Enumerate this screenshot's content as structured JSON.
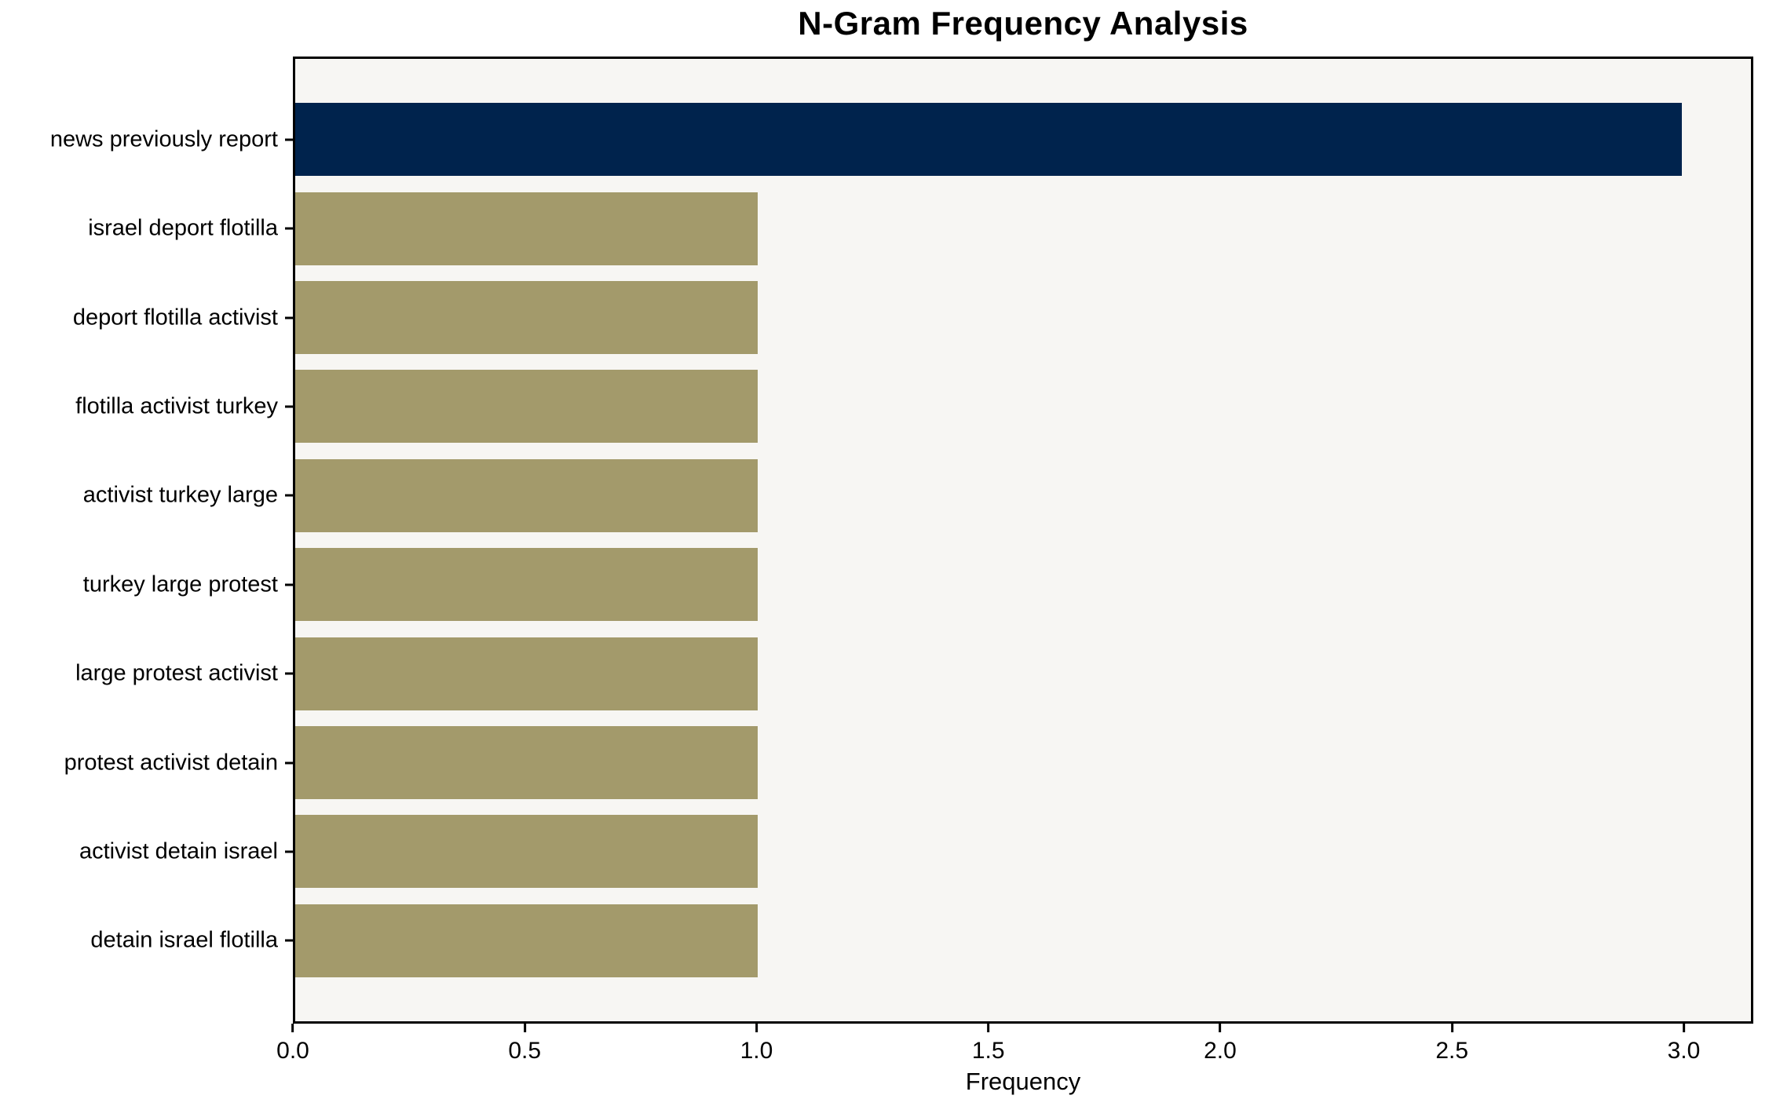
{
  "chart_data": {
    "type": "bar",
    "orientation": "horizontal",
    "title": "N-Gram Frequency Analysis",
    "xlabel": "Frequency",
    "ylabel": "",
    "categories": [
      "news previously report",
      "israel deport flotilla",
      "deport flotilla activist",
      "flotilla activist turkey",
      "activist turkey large",
      "turkey large protest",
      "large protest activist",
      "protest activist detain",
      "activist detain israel",
      "detain israel flotilla"
    ],
    "values": [
      3,
      1,
      1,
      1,
      1,
      1,
      1,
      1,
      1,
      1
    ],
    "xlim": [
      0,
      3.15
    ],
    "xticks": [
      {
        "value": 0.0,
        "label": "0.0"
      },
      {
        "value": 0.5,
        "label": "0.5"
      },
      {
        "value": 1.0,
        "label": "1.0"
      },
      {
        "value": 1.5,
        "label": "1.5"
      },
      {
        "value": 2.0,
        "label": "2.0"
      },
      {
        "value": 2.5,
        "label": "2.5"
      },
      {
        "value": 3.0,
        "label": "3.0"
      }
    ],
    "grid": false,
    "legend_position": "none",
    "highlight_index": 0,
    "colors": {
      "bar_highlight": "#00234D",
      "bar_default": "#A39A6B",
      "plot_background": "#F7F6F3",
      "figure_background": "#FFFFFF",
      "axis": "#000000"
    }
  }
}
